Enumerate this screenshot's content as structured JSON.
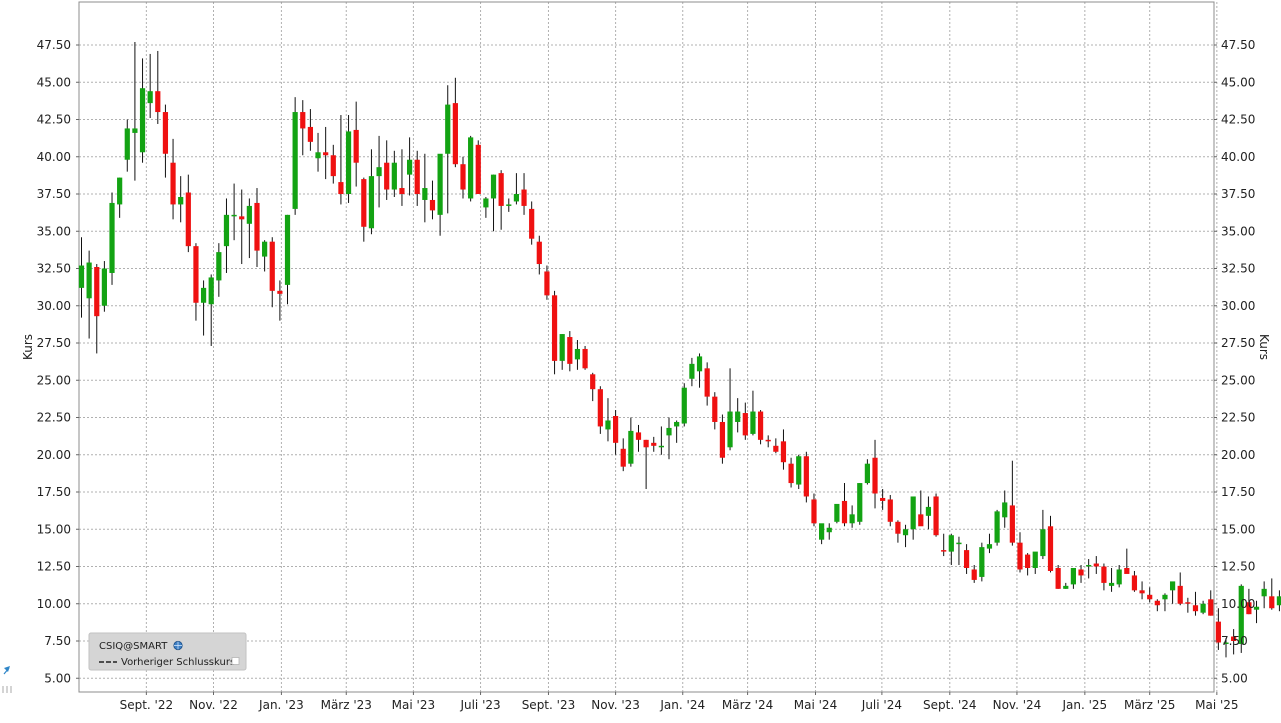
{
  "colors": {
    "up": "#13a313",
    "down": "#ef1111",
    "wick": "#111111",
    "grid": "#b0b0b0",
    "legend_bg": "#d5d5d5"
  },
  "legend": {
    "symbol": "CSIQ@SMART",
    "symbol_icon": "globe-icon",
    "previous_close_label": "Vorheriger Schlusskurs"
  },
  "chart_data": {
    "type": "candlestick",
    "title": "",
    "xlabel": "",
    "ylabel": "Kurs",
    "ylabel_right": "Kurs",
    "ylim": [
      4.0,
      50.5
    ],
    "y_ticks": [
      5.0,
      7.5,
      10.0,
      12.5,
      15.0,
      17.5,
      20.0,
      22.5,
      25.0,
      27.5,
      30.0,
      32.5,
      35.0,
      37.5,
      40.0,
      42.5,
      45.0,
      47.5
    ],
    "y_tick_labels": [
      "5.00",
      "7.50",
      "10.00",
      "12.50",
      "15.00",
      "17.50",
      "20.00",
      "22.50",
      "25.00",
      "27.50",
      "30.00",
      "32.50",
      "35.00",
      "37.50",
      "40.00",
      "42.50",
      "45.00",
      "47.50"
    ],
    "x_labels": [
      "Sept. '22",
      "Nov. '22",
      "Jan. '23",
      "März '23",
      "Mai '23",
      "Juli '23",
      "Sept. '23",
      "Nov. '23",
      "Jan. '24",
      "März '24",
      "Mai '24",
      "Juli '24",
      "Sept. '24",
      "Nov. '24",
      "Jan. '25",
      "März '25",
      "Mai '25"
    ],
    "x_label_weeks": [
      8.5,
      17.3,
      26.2,
      34.7,
      43.5,
      52.3,
      61.2,
      70,
      78.8,
      87.3,
      96.2,
      104.9,
      113.8,
      122.6,
      131.5,
      140,
      148.8
    ],
    "grid": true,
    "legend_position": "bottom-left",
    "interval": "weekly",
    "candles": [
      {
        "o": 31.2,
        "h": 34.6,
        "l": 29.2,
        "c": 32.7
      },
      {
        "o": 30.5,
        "h": 33.7,
        "l": 27.8,
        "c": 32.9
      },
      {
        "o": 32.6,
        "h": 32.8,
        "l": 26.8,
        "c": 29.3
      },
      {
        "o": 30.0,
        "h": 33.0,
        "l": 29.6,
        "c": 32.5
      },
      {
        "o": 32.2,
        "h": 37.6,
        "l": 31.4,
        "c": 36.9
      },
      {
        "o": 36.8,
        "h": 38.6,
        "l": 35.9,
        "c": 38.6
      },
      {
        "o": 39.8,
        "h": 42.5,
        "l": 39.0,
        "c": 41.9
      },
      {
        "o": 41.6,
        "h": 47.7,
        "l": 38.4,
        "c": 41.9
      },
      {
        "o": 40.3,
        "h": 46.6,
        "l": 39.6,
        "c": 44.6
      },
      {
        "o": 43.6,
        "h": 46.9,
        "l": 42.6,
        "c": 44.4
      },
      {
        "o": 44.4,
        "h": 47.1,
        "l": 42.2,
        "c": 43.0
      },
      {
        "o": 43.0,
        "h": 43.5,
        "l": 38.6,
        "c": 40.2
      },
      {
        "o": 39.6,
        "h": 41.2,
        "l": 35.8,
        "c": 36.8
      },
      {
        "o": 36.8,
        "h": 38.7,
        "l": 35.6,
        "c": 37.3
      },
      {
        "o": 37.6,
        "h": 38.8,
        "l": 33.6,
        "c": 34.0
      },
      {
        "o": 34.0,
        "h": 34.2,
        "l": 29.0,
        "c": 30.2
      },
      {
        "o": 30.2,
        "h": 31.7,
        "l": 28.0,
        "c": 31.2
      },
      {
        "o": 30.1,
        "h": 32.1,
        "l": 27.3,
        "c": 31.9
      },
      {
        "o": 31.7,
        "h": 34.2,
        "l": 30.6,
        "c": 33.6
      },
      {
        "o": 34.0,
        "h": 37.2,
        "l": 32.2,
        "c": 36.1
      },
      {
        "o": 36.1,
        "h": 38.2,
        "l": 34.4,
        "c": 36.1
      },
      {
        "o": 36.0,
        "h": 37.8,
        "l": 32.8,
        "c": 35.8
      },
      {
        "o": 35.5,
        "h": 37.2,
        "l": 33.2,
        "c": 36.7
      },
      {
        "o": 36.9,
        "h": 37.9,
        "l": 32.6,
        "c": 33.7
      },
      {
        "o": 33.3,
        "h": 34.4,
        "l": 32.3,
        "c": 34.3
      },
      {
        "o": 34.3,
        "h": 34.6,
        "l": 29.9,
        "c": 31.0
      },
      {
        "o": 31.0,
        "h": 31.7,
        "l": 29.0,
        "c": 30.8
      },
      {
        "o": 31.4,
        "h": 36.1,
        "l": 30.1,
        "c": 36.1
      },
      {
        "o": 36.5,
        "h": 44.0,
        "l": 36.1,
        "c": 43.0
      },
      {
        "o": 43.0,
        "h": 43.8,
        "l": 40.1,
        "c": 41.9
      },
      {
        "o": 42.0,
        "h": 43.2,
        "l": 40.4,
        "c": 41.0
      },
      {
        "o": 39.9,
        "h": 41.6,
        "l": 39.0,
        "c": 40.3
      },
      {
        "o": 40.3,
        "h": 42.0,
        "l": 38.5,
        "c": 40.1
      },
      {
        "o": 40.1,
        "h": 40.8,
        "l": 38.2,
        "c": 38.7
      },
      {
        "o": 38.3,
        "h": 42.8,
        "l": 36.8,
        "c": 37.5
      },
      {
        "o": 37.5,
        "h": 42.8,
        "l": 36.9,
        "c": 41.7
      },
      {
        "o": 41.8,
        "h": 43.7,
        "l": 38.0,
        "c": 39.6
      },
      {
        "o": 38.5,
        "h": 38.6,
        "l": 34.3,
        "c": 35.3
      },
      {
        "o": 35.2,
        "h": 40.5,
        "l": 34.8,
        "c": 38.7
      },
      {
        "o": 38.7,
        "h": 41.4,
        "l": 36.6,
        "c": 39.3
      },
      {
        "o": 39.6,
        "h": 41.1,
        "l": 37.1,
        "c": 37.8
      },
      {
        "o": 37.8,
        "h": 40.4,
        "l": 37.3,
        "c": 39.6
      },
      {
        "o": 37.9,
        "h": 40.5,
        "l": 36.7,
        "c": 37.5
      },
      {
        "o": 38.8,
        "h": 41.3,
        "l": 37.4,
        "c": 39.8
      },
      {
        "o": 39.8,
        "h": 40.4,
        "l": 36.7,
        "c": 37.5
      },
      {
        "o": 37.1,
        "h": 40.2,
        "l": 35.6,
        "c": 37.9
      },
      {
        "o": 37.1,
        "h": 38.4,
        "l": 35.8,
        "c": 36.4
      },
      {
        "o": 36.1,
        "h": 40.0,
        "l": 34.7,
        "c": 40.2
      },
      {
        "o": 40.2,
        "h": 44.8,
        "l": 36.2,
        "c": 43.5
      },
      {
        "o": 43.6,
        "h": 45.3,
        "l": 39.3,
        "c": 39.5
      },
      {
        "o": 39.5,
        "h": 40.0,
        "l": 37.2,
        "c": 37.8
      },
      {
        "o": 37.2,
        "h": 41.4,
        "l": 37.0,
        "c": 41.3
      },
      {
        "o": 40.8,
        "h": 41.1,
        "l": 37.6,
        "c": 37.5
      },
      {
        "o": 36.6,
        "h": 37.3,
        "l": 35.9,
        "c": 37.2
      },
      {
        "o": 37.2,
        "h": 38.8,
        "l": 35.0,
        "c": 38.8
      },
      {
        "o": 38.9,
        "h": 39.1,
        "l": 35.1,
        "c": 36.7
      },
      {
        "o": 36.7,
        "h": 37.2,
        "l": 36.3,
        "c": 36.8
      },
      {
        "o": 37.0,
        "h": 38.9,
        "l": 36.8,
        "c": 37.5
      },
      {
        "o": 37.8,
        "h": 38.9,
        "l": 36.1,
        "c": 36.7
      },
      {
        "o": 36.5,
        "h": 37.0,
        "l": 34.1,
        "c": 34.5
      },
      {
        "o": 34.3,
        "h": 34.7,
        "l": 32.1,
        "c": 32.8
      },
      {
        "o": 32.3,
        "h": 32.7,
        "l": 30.4,
        "c": 30.7
      },
      {
        "o": 30.7,
        "h": 31.0,
        "l": 25.4,
        "c": 26.3
      },
      {
        "o": 26.3,
        "h": 28.1,
        "l": 25.7,
        "c": 28.1
      },
      {
        "o": 27.9,
        "h": 28.3,
        "l": 25.6,
        "c": 26.1
      },
      {
        "o": 26.4,
        "h": 27.7,
        "l": 25.7,
        "c": 27.1
      },
      {
        "o": 27.1,
        "h": 27.3,
        "l": 25.7,
        "c": 25.8
      },
      {
        "o": 25.4,
        "h": 25.5,
        "l": 23.6,
        "c": 24.4
      },
      {
        "o": 24.4,
        "h": 24.6,
        "l": 21.4,
        "c": 21.9
      },
      {
        "o": 21.7,
        "h": 23.8,
        "l": 20.9,
        "c": 22.3
      },
      {
        "o": 22.6,
        "h": 23.0,
        "l": 20.0,
        "c": 20.8
      },
      {
        "o": 20.4,
        "h": 21.1,
        "l": 18.9,
        "c": 19.2
      },
      {
        "o": 19.4,
        "h": 22.5,
        "l": 19.2,
        "c": 21.6
      },
      {
        "o": 21.5,
        "h": 22.0,
        "l": 20.2,
        "c": 21.0
      },
      {
        "o": 21.0,
        "h": 21.0,
        "l": 17.7,
        "c": 20.5
      },
      {
        "o": 20.8,
        "h": 21.2,
        "l": 20.2,
        "c": 20.6
      },
      {
        "o": 20.6,
        "h": 21.9,
        "l": 20.0,
        "c": 20.6
      },
      {
        "o": 21.3,
        "h": 22.5,
        "l": 19.7,
        "c": 21.8
      },
      {
        "o": 21.9,
        "h": 22.3,
        "l": 20.8,
        "c": 22.2
      },
      {
        "o": 22.1,
        "h": 24.8,
        "l": 21.9,
        "c": 24.5
      },
      {
        "o": 25.1,
        "h": 26.5,
        "l": 24.6,
        "c": 26.1
      },
      {
        "o": 25.6,
        "h": 26.8,
        "l": 24.5,
        "c": 26.6
      },
      {
        "o": 25.8,
        "h": 26.2,
        "l": 23.3,
        "c": 23.9
      },
      {
        "o": 23.9,
        "h": 24.2,
        "l": 21.7,
        "c": 22.2
      },
      {
        "o": 22.2,
        "h": 22.7,
        "l": 19.4,
        "c": 19.8
      },
      {
        "o": 20.5,
        "h": 25.8,
        "l": 20.3,
        "c": 22.9
      },
      {
        "o": 22.2,
        "h": 23.8,
        "l": 21.5,
        "c": 22.9
      },
      {
        "o": 22.8,
        "h": 23.5,
        "l": 21.0,
        "c": 21.3
      },
      {
        "o": 21.4,
        "h": 24.3,
        "l": 21.3,
        "c": 22.9
      },
      {
        "o": 22.9,
        "h": 23.0,
        "l": 20.7,
        "c": 21.0
      },
      {
        "o": 21.0,
        "h": 21.3,
        "l": 20.5,
        "c": 20.9
      },
      {
        "o": 20.6,
        "h": 21.1,
        "l": 20.1,
        "c": 20.2
      },
      {
        "o": 20.9,
        "h": 21.7,
        "l": 19.0,
        "c": 19.5
      },
      {
        "o": 19.4,
        "h": 19.8,
        "l": 17.8,
        "c": 18.1
      },
      {
        "o": 18.0,
        "h": 20.0,
        "l": 17.7,
        "c": 19.9
      },
      {
        "o": 19.9,
        "h": 20.2,
        "l": 16.8,
        "c": 17.2
      },
      {
        "o": 17.0,
        "h": 17.4,
        "l": 15.2,
        "c": 15.4
      },
      {
        "o": 14.3,
        "h": 15.3,
        "l": 14.0,
        "c": 15.4
      },
      {
        "o": 14.8,
        "h": 15.4,
        "l": 14.3,
        "c": 15.1
      },
      {
        "o": 15.5,
        "h": 16.6,
        "l": 15.4,
        "c": 16.7
      },
      {
        "o": 16.9,
        "h": 18.1,
        "l": 15.2,
        "c": 15.4
      },
      {
        "o": 15.4,
        "h": 16.6,
        "l": 15.1,
        "c": 16.0
      },
      {
        "o": 15.5,
        "h": 18.1,
        "l": 15.3,
        "c": 18.1
      },
      {
        "o": 18.1,
        "h": 19.7,
        "l": 18.0,
        "c": 19.4
      },
      {
        "o": 19.8,
        "h": 21.0,
        "l": 16.4,
        "c": 17.4
      },
      {
        "o": 17.1,
        "h": 17.7,
        "l": 16.3,
        "c": 16.9
      },
      {
        "o": 17.0,
        "h": 17.3,
        "l": 15.2,
        "c": 15.5
      },
      {
        "o": 15.5,
        "h": 15.6,
        "l": 14.1,
        "c": 14.7
      },
      {
        "o": 14.6,
        "h": 15.3,
        "l": 13.8,
        "c": 15.0
      },
      {
        "o": 15.0,
        "h": 17.1,
        "l": 14.3,
        "c": 17.2
      },
      {
        "o": 16.0,
        "h": 17.6,
        "l": 15.3,
        "c": 15.2
      },
      {
        "o": 15.9,
        "h": 17.2,
        "l": 15.0,
        "c": 16.5
      },
      {
        "o": 17.2,
        "h": 17.4,
        "l": 14.5,
        "c": 14.6
      },
      {
        "o": 13.6,
        "h": 14.7,
        "l": 13.2,
        "c": 13.5
      },
      {
        "o": 13.5,
        "h": 14.7,
        "l": 12.6,
        "c": 14.6
      },
      {
        "o": 14.0,
        "h": 14.5,
        "l": 12.6,
        "c": 14.1
      },
      {
        "o": 13.6,
        "h": 14.0,
        "l": 12.0,
        "c": 12.4
      },
      {
        "o": 12.3,
        "h": 12.6,
        "l": 11.4,
        "c": 11.6
      },
      {
        "o": 11.8,
        "h": 14.1,
        "l": 11.5,
        "c": 13.8
      },
      {
        "o": 13.7,
        "h": 14.7,
        "l": 13.4,
        "c": 14.0
      },
      {
        "o": 14.1,
        "h": 16.3,
        "l": 13.9,
        "c": 16.2
      },
      {
        "o": 15.8,
        "h": 17.6,
        "l": 15.1,
        "c": 16.8
      },
      {
        "o": 16.6,
        "h": 19.6,
        "l": 13.9,
        "c": 14.1
      },
      {
        "o": 14.1,
        "h": 14.8,
        "l": 12.1,
        "c": 12.3
      },
      {
        "o": 13.3,
        "h": 13.4,
        "l": 11.9,
        "c": 12.4
      },
      {
        "o": 12.4,
        "h": 13.4,
        "l": 12.0,
        "c": 13.5
      },
      {
        "o": 13.2,
        "h": 16.3,
        "l": 13.0,
        "c": 15.0
      },
      {
        "o": 15.2,
        "h": 15.9,
        "l": 12.1,
        "c": 12.2
      },
      {
        "o": 12.4,
        "h": 12.6,
        "l": 11.0,
        "c": 11.0
      },
      {
        "o": 11.0,
        "h": 11.4,
        "l": 11.0,
        "c": 11.2
      },
      {
        "o": 11.3,
        "h": 12.4,
        "l": 11.0,
        "c": 12.4
      },
      {
        "o": 12.3,
        "h": 12.6,
        "l": 11.4,
        "c": 11.9
      },
      {
        "o": 12.5,
        "h": 13.0,
        "l": 11.7,
        "c": 12.6
      },
      {
        "o": 12.7,
        "h": 13.2,
        "l": 12.0,
        "c": 12.5
      },
      {
        "o": 12.5,
        "h": 12.7,
        "l": 10.9,
        "c": 11.4
      },
      {
        "o": 11.2,
        "h": 12.4,
        "l": 10.8,
        "c": 11.4
      },
      {
        "o": 11.3,
        "h": 12.6,
        "l": 11.1,
        "c": 12.3
      },
      {
        "o": 12.4,
        "h": 13.7,
        "l": 12.2,
        "c": 12.0
      },
      {
        "o": 11.9,
        "h": 12.2,
        "l": 10.8,
        "c": 10.9
      },
      {
        "o": 10.9,
        "h": 11.5,
        "l": 10.3,
        "c": 10.7
      },
      {
        "o": 10.6,
        "h": 11.1,
        "l": 10.1,
        "c": 10.3
      },
      {
        "o": 10.2,
        "h": 10.3,
        "l": 9.5,
        "c": 9.9
      },
      {
        "o": 10.3,
        "h": 10.7,
        "l": 9.5,
        "c": 10.6
      },
      {
        "o": 10.9,
        "h": 11.4,
        "l": 10.0,
        "c": 11.5
      },
      {
        "o": 11.2,
        "h": 12.1,
        "l": 9.9,
        "c": 10.0
      },
      {
        "o": 10.1,
        "h": 10.4,
        "l": 9.4,
        "c": 10.0
      },
      {
        "o": 9.9,
        "h": 10.8,
        "l": 9.2,
        "c": 9.5
      },
      {
        "o": 9.4,
        "h": 10.2,
        "l": 9.3,
        "c": 10.0
      },
      {
        "o": 10.3,
        "h": 10.9,
        "l": 9.2,
        "c": 9.2
      },
      {
        "o": 8.8,
        "h": 9.7,
        "l": 6.9,
        "c": 7.4
      },
      {
        "o": 7.4,
        "h": 7.7,
        "l": 6.4,
        "c": 7.4
      },
      {
        "o": 7.8,
        "h": 8.3,
        "l": 6.6,
        "c": 7.5
      },
      {
        "o": 7.3,
        "h": 11.3,
        "l": 6.7,
        "c": 11.2
      },
      {
        "o": 10.1,
        "h": 11.0,
        "l": 9.3,
        "c": 9.3
      },
      {
        "o": 9.6,
        "h": 10.2,
        "l": 8.7,
        "c": 9.8
      },
      {
        "o": 10.5,
        "h": 11.5,
        "l": 9.7,
        "c": 11.0
      },
      {
        "o": 10.5,
        "h": 11.7,
        "l": 9.6,
        "c": 9.7
      },
      {
        "o": 9.9,
        "h": 10.9,
        "l": 9.5,
        "c": 10.5
      },
      {
        "o": 10.6,
        "h": 11.8,
        "l": 10.3,
        "c": 11.3
      },
      {
        "o": 11.6,
        "h": 11.8,
        "l": 10.8,
        "c": 11.2
      },
      {
        "o": 11.3,
        "h": 11.5,
        "l": 9.9,
        "c": 10.1
      },
      {
        "o": 10.1,
        "h": 10.3,
        "l": 9.9,
        "c": 10.1
      }
    ]
  }
}
